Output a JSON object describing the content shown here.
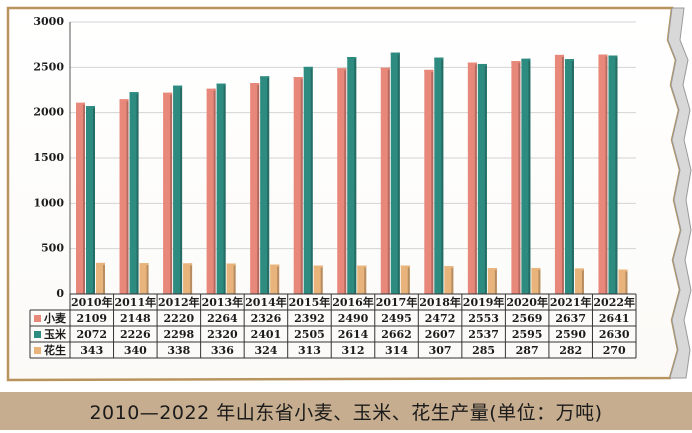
{
  "chart_data": {
    "type": "bar",
    "title": "2010—2022 年山东省小麦、玉米、花生产量(单位：万吨)",
    "xlabel": "",
    "ylabel": "",
    "ylim": [
      0,
      3000
    ],
    "yticks": [
      "0",
      "500",
      "1000",
      "1500",
      "2000",
      "2500",
      "3000"
    ],
    "grid": true,
    "legend": "table-below",
    "categories": [
      "2010年",
      "2011年",
      "2012年",
      "2013年",
      "2014年",
      "2015年",
      "2016年",
      "2017年",
      "2018年",
      "2019年",
      "2020年",
      "2021年",
      "2022年"
    ],
    "series": [
      {
        "name": "小麦",
        "color": "#e8887a",
        "values": [
          2109,
          2148,
          2220,
          2264,
          2326,
          2392,
          2490,
          2495,
          2472,
          2553,
          2569,
          2637,
          2641
        ]
      },
      {
        "name": "玉米",
        "color": "#2e8b80",
        "values": [
          2072,
          2226,
          2298,
          2320,
          2401,
          2505,
          2614,
          2662,
          2607,
          2537,
          2595,
          2590,
          2630
        ]
      },
      {
        "name": "花生",
        "color": "#e9b47c",
        "values": [
          343,
          340,
          338,
          336,
          324,
          313,
          312,
          314,
          307,
          285,
          287,
          282,
          270
        ]
      }
    ]
  },
  "colors": {
    "border": "#b8935c",
    "grid": "#d4d4d4",
    "caption_bg": "#c7ad8f",
    "torn_edge": "#9a9a9a"
  }
}
